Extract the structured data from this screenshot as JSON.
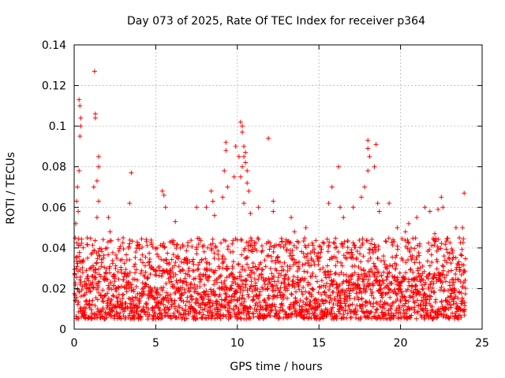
{
  "chart_data": {
    "type": "scatter",
    "title": "Day 073 of 2025, Rate Of TEC Index for receiver p364",
    "xlabel": "GPS time / hours",
    "ylabel": "ROTI / TECUs",
    "xlim": [
      0,
      25
    ],
    "ylim": [
      0,
      0.14
    ],
    "xticks": [
      0,
      5,
      10,
      15,
      20,
      25
    ],
    "xtick_labels": [
      "0",
      "5",
      "10",
      "15",
      "20",
      "25"
    ],
    "yticks": [
      0,
      0.02,
      0.04,
      0.06,
      0.08,
      0.1,
      0.12,
      0.14
    ],
    "ytick_labels": [
      "0",
      "0.02",
      "0.04",
      "0.06",
      "0.08",
      "0.1",
      "0.12",
      "0.14"
    ],
    "grid": true,
    "marker": "+",
    "marker_color": "#ff0000",
    "x_range_of_data": [
      0,
      24
    ],
    "baseline_band": [
      0.005,
      0.03
    ],
    "series": [
      {
        "name": "ROTI",
        "points": [
          [
            0.3,
            0.113
          ],
          [
            0.35,
            0.11
          ],
          [
            0.4,
            0.104
          ],
          [
            0.4,
            0.1
          ],
          [
            0.35,
            0.095
          ],
          [
            0.3,
            0.078
          ],
          [
            0.2,
            0.07
          ],
          [
            0.15,
            0.063
          ],
          [
            0.25,
            0.058
          ],
          [
            0.1,
            0.052
          ],
          [
            1.25,
            0.127
          ],
          [
            1.3,
            0.106
          ],
          [
            1.3,
            0.104
          ],
          [
            1.5,
            0.085
          ],
          [
            1.5,
            0.08
          ],
          [
            1.4,
            0.073
          ],
          [
            1.2,
            0.07
          ],
          [
            1.5,
            0.063
          ],
          [
            1.4,
            0.055
          ],
          [
            0.8,
            0.045
          ],
          [
            2.2,
            0.048
          ],
          [
            2.1,
            0.055
          ],
          [
            3.5,
            0.077
          ],
          [
            3.4,
            0.062
          ],
          [
            3.0,
            0.045
          ],
          [
            5.4,
            0.068
          ],
          [
            5.5,
            0.066
          ],
          [
            5.6,
            0.06
          ],
          [
            6.2,
            0.053
          ],
          [
            6.5,
            0.04
          ],
          [
            7.5,
            0.06
          ],
          [
            8.1,
            0.06
          ],
          [
            8.4,
            0.068
          ],
          [
            8.5,
            0.063
          ],
          [
            8.6,
            0.056
          ],
          [
            9.3,
            0.092
          ],
          [
            9.3,
            0.088
          ],
          [
            9.2,
            0.078
          ],
          [
            9.4,
            0.07
          ],
          [
            9.1,
            0.065
          ],
          [
            10.2,
            0.102
          ],
          [
            10.3,
            0.1
          ],
          [
            10.3,
            0.097
          ],
          [
            10.4,
            0.09
          ],
          [
            10.5,
            0.087
          ],
          [
            10.4,
            0.085
          ],
          [
            10.5,
            0.082
          ],
          [
            10.3,
            0.08
          ],
          [
            10.6,
            0.078
          ],
          [
            10.6,
            0.072
          ],
          [
            10.2,
            0.075
          ],
          [
            10.1,
            0.085
          ],
          [
            10.7,
            0.068
          ],
          [
            10.4,
            0.062
          ],
          [
            10.8,
            0.057
          ],
          [
            9.9,
            0.09
          ],
          [
            9.8,
            0.075
          ],
          [
            11.3,
            0.06
          ],
          [
            11.9,
            0.094
          ],
          [
            12.2,
            0.063
          ],
          [
            12.2,
            0.058
          ],
          [
            13.3,
            0.055
          ],
          [
            13.5,
            0.048
          ],
          [
            14.2,
            0.05
          ],
          [
            15.6,
            0.062
          ],
          [
            15.8,
            0.07
          ],
          [
            16.2,
            0.08
          ],
          [
            16.3,
            0.06
          ],
          [
            16.5,
            0.055
          ],
          [
            17.1,
            0.06
          ],
          [
            18.0,
            0.093
          ],
          [
            18.0,
            0.089
          ],
          [
            18.1,
            0.085
          ],
          [
            18.5,
            0.091
          ],
          [
            18.0,
            0.078
          ],
          [
            17.8,
            0.07
          ],
          [
            18.4,
            0.08
          ],
          [
            18.6,
            0.062
          ],
          [
            18.7,
            0.058
          ],
          [
            17.6,
            0.065
          ],
          [
            19.3,
            0.062
          ],
          [
            19.8,
            0.05
          ],
          [
            20.3,
            0.048
          ],
          [
            20.5,
            0.052
          ],
          [
            21.0,
            0.055
          ],
          [
            21.5,
            0.06
          ],
          [
            21.8,
            0.058
          ],
          [
            22.3,
            0.059
          ],
          [
            22.5,
            0.065
          ],
          [
            22.6,
            0.06
          ],
          [
            23.4,
            0.05
          ],
          [
            23.9,
            0.067
          ],
          [
            23.8,
            0.05
          ],
          [
            23.6,
            0.045
          ],
          [
            22.1,
            0.047
          ]
        ]
      }
    ]
  }
}
